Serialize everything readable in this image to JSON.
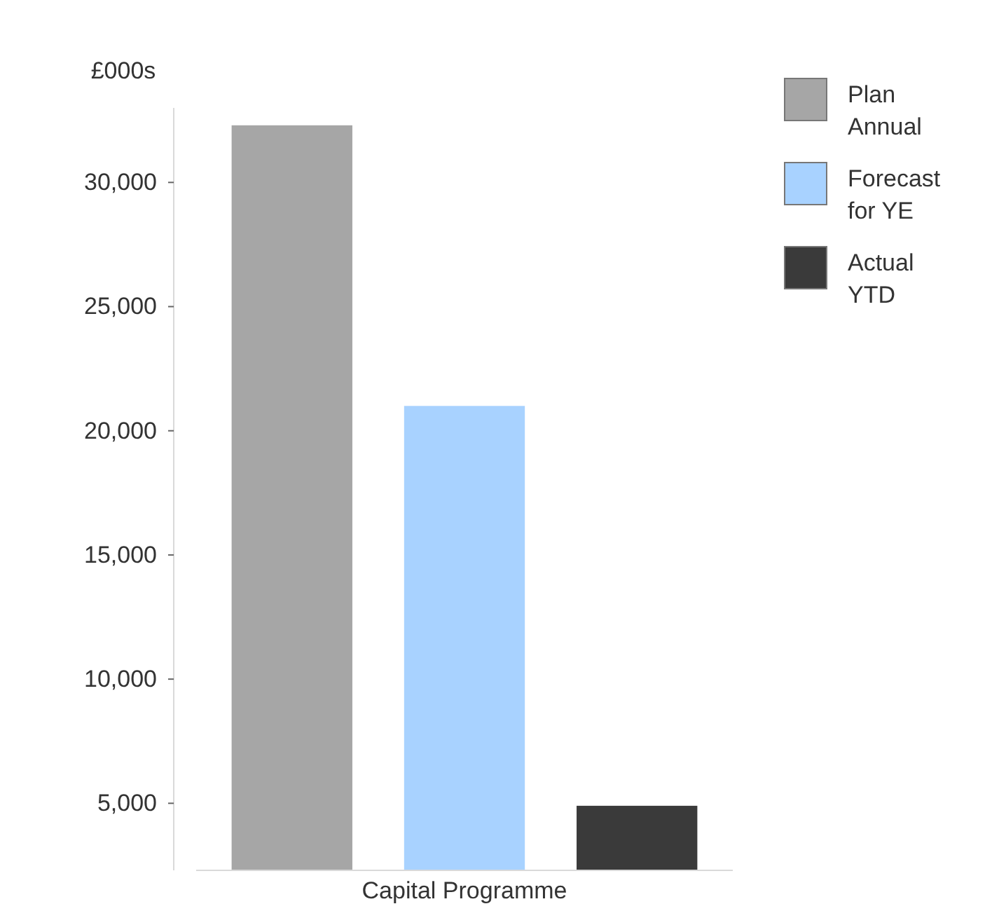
{
  "chart_data": {
    "type": "bar",
    "ylabel": "£000s",
    "categories": [
      "Capital Programme"
    ],
    "series": [
      {
        "name": "Plan Annual",
        "color": "#a6a6a6",
        "values": [
          32300
        ]
      },
      {
        "name": "Forecast for YE",
        "color": "#a8d2ff",
        "values": [
          21000
        ]
      },
      {
        "name": "Actual YTD",
        "color": "#3a3a3a",
        "values": [
          4900
        ]
      }
    ],
    "ylim": [
      2300,
      33000
    ],
    "yticks": [
      {
        "value": 5000,
        "label": "5,000"
      },
      {
        "value": 10000,
        "label": "10,000"
      },
      {
        "value": 15000,
        "label": "15,000"
      },
      {
        "value": 20000,
        "label": "20,000"
      },
      {
        "value": 25000,
        "label": "25,000"
      },
      {
        "value": 30000,
        "label": "30,000"
      }
    ],
    "grid": false,
    "legend": "top right"
  }
}
